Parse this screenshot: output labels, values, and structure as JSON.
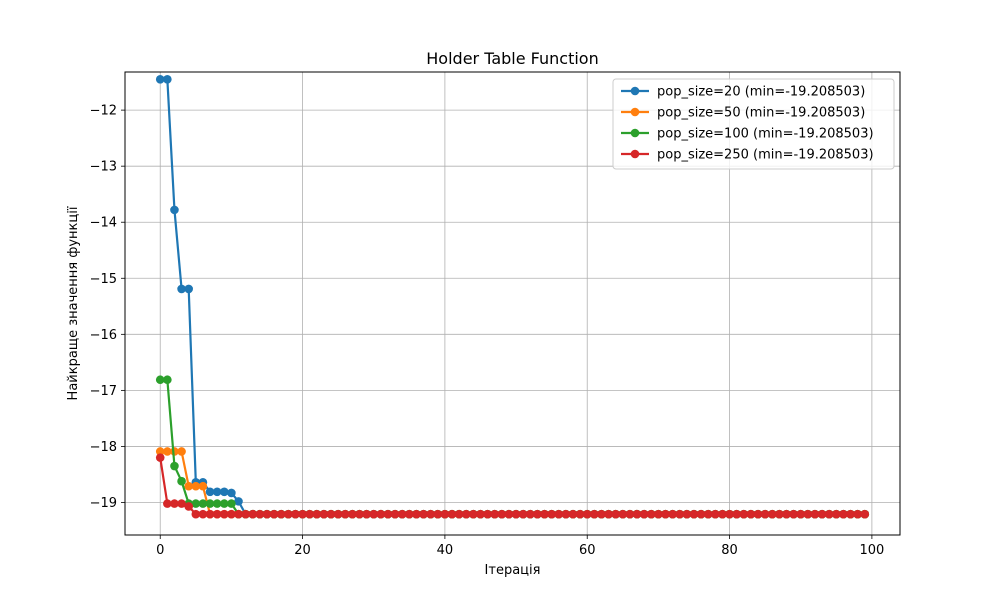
{
  "chart_data": {
    "type": "line",
    "title": "Holder Table Function",
    "xlabel": "Ітерація",
    "ylabel": "Найкраще значення функції",
    "xlim": [
      -4.95,
      103.95
    ],
    "ylim": [
      -19.58,
      -11.32
    ],
    "x_ticks": [
      0,
      20,
      40,
      60,
      80,
      100
    ],
    "x_tick_labels": [
      "0",
      "20",
      "40",
      "60",
      "80",
      "100"
    ],
    "y_ticks": [
      -19,
      -18,
      -17,
      -16,
      -15,
      -14,
      -13,
      -12
    ],
    "y_tick_labels": [
      "−19",
      "−18",
      "−17",
      "−16",
      "−15",
      "−14",
      "−13",
      "−12"
    ],
    "grid": true,
    "legend_position": "top-right",
    "x": [
      0,
      1,
      2,
      3,
      4,
      5,
      6,
      7,
      8,
      9,
      10,
      11,
      12,
      13,
      14,
      15,
      16,
      17,
      18,
      19,
      20,
      21,
      22,
      23,
      24,
      25,
      26,
      27,
      28,
      29,
      30,
      31,
      32,
      33,
      34,
      35,
      36,
      37,
      38,
      39,
      40,
      41,
      42,
      43,
      44,
      45,
      46,
      47,
      48,
      49,
      50,
      51,
      52,
      53,
      54,
      55,
      56,
      57,
      58,
      59,
      60,
      61,
      62,
      63,
      64,
      65,
      66,
      67,
      68,
      69,
      70,
      71,
      72,
      73,
      74,
      75,
      76,
      77,
      78,
      79,
      80,
      81,
      82,
      83,
      84,
      85,
      86,
      87,
      88,
      89,
      90,
      91,
      92,
      93,
      94,
      95,
      96,
      97,
      98,
      99
    ],
    "series": [
      {
        "name": "pop_size=20 (min=-19.208503)",
        "color": "#1f77b4",
        "head": [
          -11.45,
          -11.45,
          -13.78,
          -15.19,
          -15.19,
          -18.64,
          -18.64,
          -18.81,
          -18.81,
          -18.81,
          -18.83,
          -18.98
        ],
        "tail_value": -19.208503
      },
      {
        "name": "pop_size=50 (min=-19.208503)",
        "color": "#ff7f0e",
        "head": [
          -18.09,
          -18.09,
          -18.09,
          -18.09,
          -18.71,
          -18.71,
          -18.71
        ],
        "tail_value": -19.208503
      },
      {
        "name": "pop_size=100 (min=-19.208503)",
        "color": "#2ca02c",
        "head": [
          -16.81,
          -16.81,
          -18.35,
          -18.62,
          -19.02,
          -19.02,
          -19.02,
          -19.02,
          -19.02,
          -19.02,
          -19.02
        ],
        "tail_value": -19.208503
      },
      {
        "name": "pop_size=250 (min=-19.208503)",
        "color": "#d62728",
        "head": [
          -18.2,
          -19.02,
          -19.02,
          -19.02,
          -19.07
        ],
        "tail_value": -19.208503
      }
    ]
  }
}
